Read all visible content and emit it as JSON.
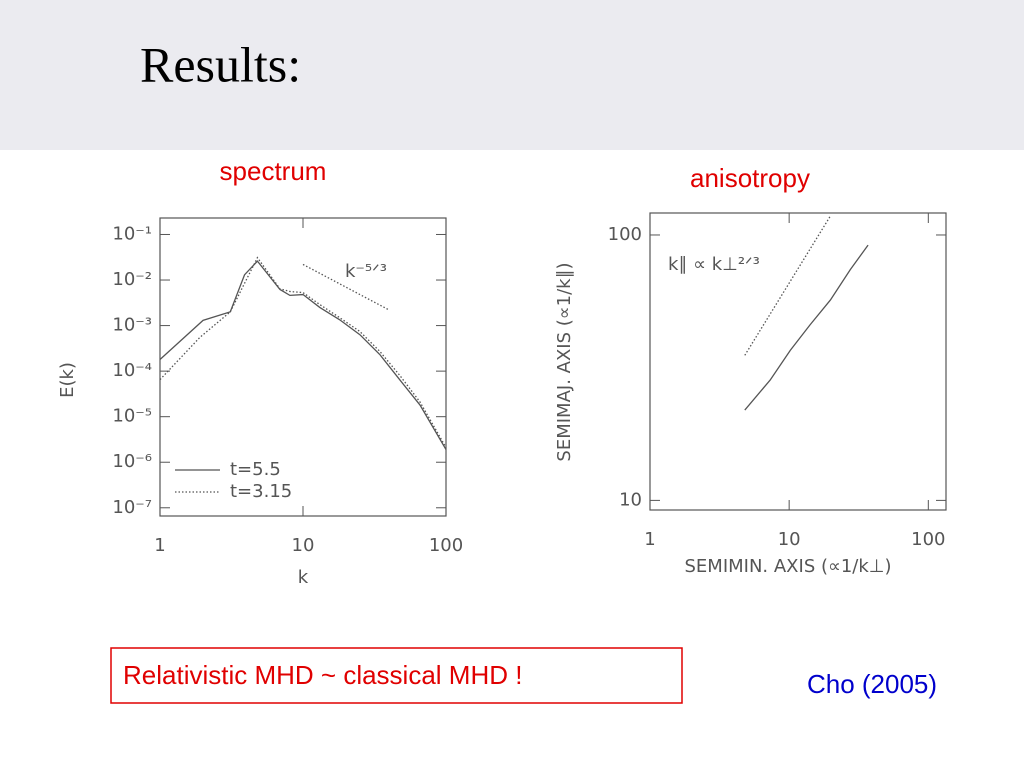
{
  "slide": {
    "title": "Results:",
    "captions": [
      "spectrum",
      "anisotropy"
    ],
    "note": "Relativistic MHD ~ classical MHD !",
    "citation": "Cho (2005)"
  },
  "chart_data": [
    {
      "type": "line",
      "xlabel": "k",
      "ylabel": "E(k)",
      "xscale": "log",
      "yscale": "log",
      "xlim": [
        1,
        100
      ],
      "ylim": [
        6.6e-08,
        0.23
      ],
      "xticks": [
        1,
        10,
        100
      ],
      "yticks": [
        {
          "value": 0.1,
          "label": "10⁻¹"
        },
        {
          "value": 0.01,
          "label": "10⁻²"
        },
        {
          "value": 0.001,
          "label": "10⁻³"
        },
        {
          "value": 0.0001,
          "label": "10⁻⁴"
        },
        {
          "value": 1e-05,
          "label": "10⁻⁵"
        },
        {
          "value": 1e-06,
          "label": "10⁻⁶"
        },
        {
          "value": 1e-07,
          "label": "10⁻⁷"
        }
      ],
      "legend": "lower left",
      "series": [
        {
          "name": "t=5.5",
          "color": "#555555",
          "linestyle": "solid",
          "x": [
            1,
            2,
            3.1,
            3.9,
            4.8,
            6.9,
            8.1,
            10,
            13.1,
            18,
            25,
            34.5,
            47.6,
            65.8,
            100
          ],
          "values": [
            0.00018,
            0.0013,
            0.002,
            0.013,
            0.026,
            0.0062,
            0.0046,
            0.0048,
            0.0025,
            0.00135,
            0.00063,
            0.00023,
            6.4e-05,
            1.8e-05,
            1.9e-06
          ]
        },
        {
          "name": "t=3.15",
          "color": "#555555",
          "linestyle": "dotted",
          "x": [
            1,
            1.9,
            3.1,
            4.8,
            6.9,
            8.1,
            10,
            13.1,
            18,
            25,
            34.5,
            47.6,
            65.8,
            100
          ],
          "values": [
            6.5e-05,
            0.00055,
            0.002,
            0.031,
            0.0064,
            0.0056,
            0.0053,
            0.0029,
            0.0015,
            0.00074,
            0.00027,
            8e-05,
            2.1e-05,
            2.1e-06
          ]
        }
      ],
      "reference_line": {
        "label": "k⁻⁵ᐟ³",
        "color": "#555555",
        "linestyle": "dotted",
        "x": [
          10,
          40
        ],
        "values": [
          0.022,
          0.0022
        ]
      }
    },
    {
      "type": "line",
      "xlabel": "SEMIMIN. AXIS (∝1/k⊥)",
      "ylabel": "SEMIMAJ. AXIS (∝1/k∥)",
      "xscale": "log",
      "yscale": "log",
      "xlim": [
        1,
        134
      ],
      "ylim": [
        9.2,
        121
      ],
      "xticks": [
        1,
        10,
        100
      ],
      "yticks": [
        10,
        100
      ],
      "series": [
        {
          "color": "#555555",
          "linestyle": "solid",
          "x": [
            4.8,
            7.3,
            10.2,
            14.1,
            19.8,
            27.5,
            36.9
          ],
          "values": [
            21.9,
            28.4,
            36.8,
            45.8,
            56.9,
            74,
            91.6
          ]
        }
      ],
      "reference_line": {
        "label": "k∥ ∝ k⊥²ᐟ³",
        "color": "#555555",
        "linestyle": "dotted",
        "x": [
          4.8,
          19.8
        ],
        "values": [
          35.2,
          118
        ]
      }
    }
  ]
}
